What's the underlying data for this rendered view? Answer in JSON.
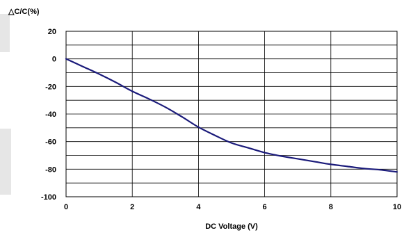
{
  "chart_data": {
    "type": "line",
    "ylabel": "△C/C(%)",
    "xlabel": "DC Voltage (V)",
    "xlim": [
      0,
      10
    ],
    "ylim": [
      -100,
      20
    ],
    "x_ticks": [
      0,
      2,
      4,
      6,
      8,
      10
    ],
    "y_ticks": [
      20,
      0,
      -20,
      -40,
      -60,
      -80,
      -100
    ],
    "grid": true,
    "series": [
      {
        "name": "",
        "color": "#1a1a7a",
        "x": [
          0,
          0.5,
          1,
          1.5,
          2,
          2.5,
          3,
          3.5,
          4,
          4.5,
          5,
          5.5,
          6,
          6.5,
          7,
          7.5,
          8,
          8.5,
          9,
          9.5,
          10
        ],
        "y": [
          0,
          -5.5,
          -11,
          -17,
          -23.5,
          -29,
          -35,
          -42,
          -49.5,
          -55.5,
          -61,
          -64.5,
          -68,
          -70.5,
          -72.5,
          -74.5,
          -76.5,
          -78,
          -79.5,
          -80.5,
          -82
        ]
      }
    ]
  }
}
